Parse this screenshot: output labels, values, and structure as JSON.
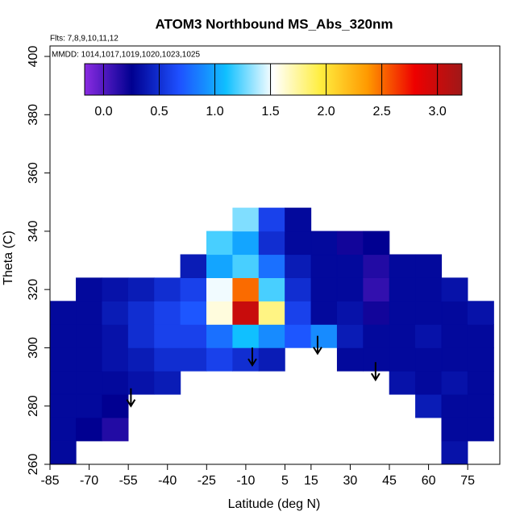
{
  "chart_data": {
    "type": "heatmap",
    "title": "ATOM3 Northbound MS_Abs_320nm",
    "subtitle": "Flts: 7,8,9,10,11,12",
    "annotation": "MMDD: 1014,1017,1019,1020,1023,1025",
    "x_label": "Latitude (deg N)",
    "y_label": "Theta (C)",
    "xlim": [
      -85,
      87.3
    ],
    "ylim": [
      260,
      403.6
    ],
    "xticks": [
      -85,
      -70,
      -55,
      -40,
      -25,
      -10,
      5,
      15,
      30,
      45,
      60,
      75
    ],
    "yticks": [
      260,
      280,
      300,
      320,
      340,
      360,
      380,
      400
    ],
    "x": [
      -80,
      -70,
      -60,
      -50,
      -40,
      -30,
      -20,
      -10,
      0,
      10,
      20,
      30,
      40,
      50,
      60,
      70,
      80
    ],
    "y": [
      264,
      272,
      280,
      288,
      296,
      304,
      312,
      320,
      328,
      336,
      344
    ],
    "values": [
      [
        0.3,
        null,
        null,
        null,
        null,
        null,
        null,
        null,
        null,
        null,
        null,
        null,
        null,
        null,
        null,
        0.35,
        null
      ],
      [
        0.3,
        0.25,
        0.15,
        null,
        null,
        null,
        null,
        null,
        null,
        null,
        null,
        null,
        null,
        null,
        null,
        0.3,
        0.3
      ],
      [
        0.3,
        0.3,
        0.25,
        null,
        null,
        null,
        null,
        null,
        null,
        null,
        null,
        null,
        null,
        null,
        0.4,
        0.3,
        0.3
      ],
      [
        0.3,
        0.3,
        0.3,
        0.35,
        0.4,
        null,
        null,
        null,
        null,
        null,
        null,
        null,
        null,
        0.35,
        0.3,
        0.35,
        0.3
      ],
      [
        0.3,
        0.3,
        0.35,
        0.4,
        0.5,
        0.5,
        0.6,
        0.5,
        0.4,
        null,
        null,
        0.3,
        0.3,
        0.3,
        0.3,
        0.3,
        0.3
      ],
      [
        0.3,
        0.3,
        0.35,
        0.5,
        0.6,
        0.6,
        0.8,
        1.1,
        0.9,
        0.7,
        0.9,
        0.4,
        0.3,
        0.3,
        0.35,
        0.3,
        0.3
      ],
      [
        0.3,
        0.3,
        0.4,
        0.5,
        0.6,
        0.7,
        1.6,
        3.0,
        1.8,
        0.6,
        0.3,
        0.35,
        0.2,
        0.3,
        0.3,
        0.3,
        0.35
      ],
      [
        null,
        0.3,
        0.35,
        0.4,
        0.5,
        0.6,
        1.5,
        2.5,
        1.2,
        0.5,
        0.3,
        0.3,
        0.1,
        0.3,
        0.3,
        0.35,
        null
      ],
      [
        null,
        null,
        null,
        null,
        null,
        0.4,
        1.0,
        1.2,
        0.8,
        0.4,
        0.3,
        0.3,
        0.15,
        0.3,
        0.3,
        null,
        null
      ],
      [
        null,
        null,
        null,
        null,
        null,
        null,
        1.2,
        1.0,
        0.5,
        0.3,
        0.3,
        0.2,
        0.25,
        null,
        null,
        null,
        null
      ],
      [
        null,
        null,
        null,
        null,
        null,
        null,
        null,
        1.3,
        0.6,
        0.3,
        null,
        null,
        null,
        null,
        null,
        null,
        null
      ]
    ],
    "colorbar_lim": [
      -0.17,
      3.22
    ],
    "colorbar_ticks": [
      {
        "value": 0,
        "label": "0.0"
      },
      {
        "value": 0.5,
        "label": "0.5"
      },
      {
        "value": 1,
        "label": "1.0"
      },
      {
        "value": 1.5,
        "label": "1.5"
      },
      {
        "value": 2,
        "label": "2.0"
      },
      {
        "value": 2.5,
        "label": "2.5"
      },
      {
        "value": 3,
        "label": "3.0"
      }
    ],
    "colorscale": [
      "#8a2be2",
      "#000090",
      "#1e50ff",
      "#10c0ff",
      "#ffffff",
      "#ffee40",
      "#ff9900",
      "#ee0000",
      "#a01818"
    ],
    "arrows_x": [
      -54,
      -7.5,
      17.5,
      39.7
    ],
    "arrows_y": [
      280,
      294,
      298,
      289
    ]
  }
}
